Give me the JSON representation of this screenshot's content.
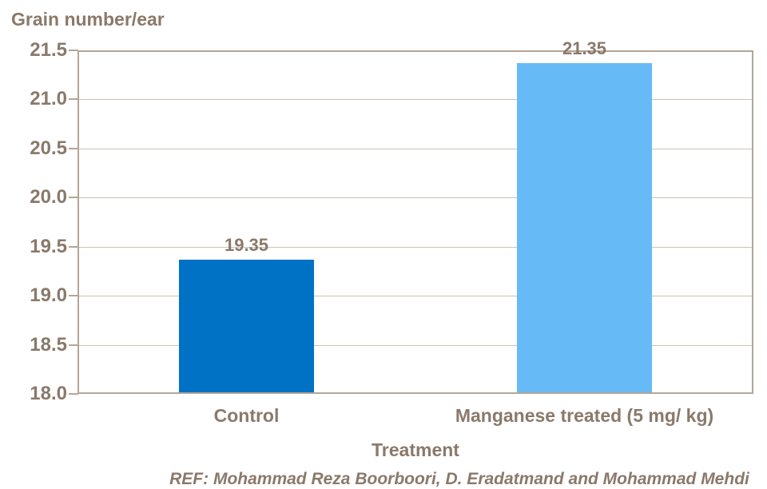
{
  "chart_data": {
    "type": "bar",
    "title": "Grain number/ear",
    "xlabel": "Treatment",
    "ylabel": "",
    "categories": [
      "Control",
      "Manganese treated (5 mg/ kg)"
    ],
    "values": [
      19.35,
      21.35
    ],
    "value_labels": [
      "19.35",
      "21.35"
    ],
    "bar_colors": [
      "#0072c6",
      "#66bbf7"
    ],
    "ylim": [
      18.0,
      21.5
    ],
    "ytick_step": 0.5,
    "ytick_labels": [
      "18.0",
      "18.5",
      "19.0",
      "19.5",
      "20.0",
      "20.5",
      "21.0",
      "21.5"
    ],
    "grid": true,
    "legend_position": "none",
    "reference": "REF: Mohammad Reza Boorboori, D. Eradatmand and Mohammad Mehdi"
  },
  "colors": {
    "text": "#8a796a",
    "axis_border": "#b3a698",
    "gridline": "#ccc2b7",
    "bar_control": "#0072c6",
    "bar_manganese": "#66bbf7",
    "background": "#ffffff"
  }
}
